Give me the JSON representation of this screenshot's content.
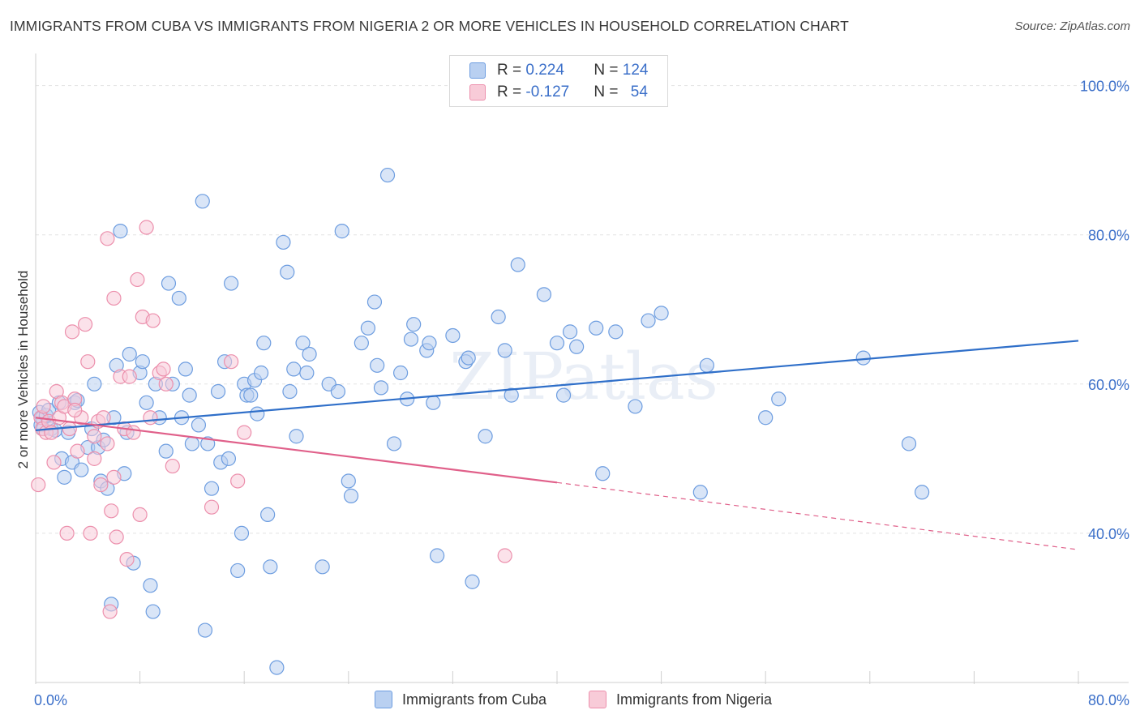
{
  "title": "IMMIGRANTS FROM CUBA VS IMMIGRANTS FROM NIGERIA 2 OR MORE VEHICLES IN HOUSEHOLD CORRELATION CHART",
  "source": "Source: ZipAtlas.com",
  "watermark": "ZIPatlas",
  "legend": {
    "cuba": {
      "r_label": "R = ",
      "r_value": "0.224",
      "n_label": "N = ",
      "n_value": "124"
    },
    "nigeria": {
      "r_label": "R = ",
      "r_value": "-0.127",
      "n_label": "N = ",
      "n_value": "54"
    }
  },
  "colors": {
    "cuba": "#6d9de0",
    "cuba_fill": "#b9d0f1",
    "nigeria": "#ec8fac",
    "nigeria_fill": "#f8cbd8",
    "cuba_line": "#2f6fc9",
    "nigeria_line": "#e0608a",
    "tick_label": "#3b6fc9",
    "grid": "#e3e3e3"
  },
  "chart_data": {
    "type": "scatter",
    "xlabel": "",
    "ylabel": "2 or more Vehicles in Household",
    "x_tick_labels": [
      "0.0%",
      "80.0%"
    ],
    "y_tick_labels": [
      "100.0%",
      "80.0%",
      "60.0%",
      "40.0%"
    ],
    "y_ticks": [
      100,
      80,
      60,
      40
    ],
    "xlim": [
      0,
      80
    ],
    "ylim": [
      20,
      103
    ],
    "grid": "horizontal dashed",
    "series": [
      {
        "name": "Immigrants from Cuba",
        "points": [
          [
            0.3,
            56.2
          ],
          [
            0.4,
            54.5
          ],
          [
            0.5,
            55.5
          ],
          [
            0.6,
            54.0
          ],
          [
            0.8,
            55.8
          ],
          [
            1.0,
            56.5
          ],
          [
            1.2,
            54.0
          ],
          [
            1.5,
            53.8
          ],
          [
            1.8,
            57.5
          ],
          [
            2.0,
            50.0
          ],
          [
            2.2,
            47.5
          ],
          [
            2.5,
            53.5
          ],
          [
            2.8,
            49.5
          ],
          [
            3.0,
            57.5
          ],
          [
            3.2,
            57.8
          ],
          [
            3.5,
            48.5
          ],
          [
            4.0,
            51.5
          ],
          [
            4.3,
            54.0
          ],
          [
            4.5,
            60.0
          ],
          [
            4.8,
            51.5
          ],
          [
            5.0,
            47.0
          ],
          [
            5.2,
            52.5
          ],
          [
            5.5,
            46.0
          ],
          [
            5.8,
            30.5
          ],
          [
            6.0,
            55.5
          ],
          [
            6.2,
            62.5
          ],
          [
            6.5,
            80.5
          ],
          [
            6.8,
            48.0
          ],
          [
            7.0,
            53.5
          ],
          [
            7.2,
            64.0
          ],
          [
            7.5,
            36.0
          ],
          [
            8.0,
            61.5
          ],
          [
            8.2,
            63.0
          ],
          [
            8.5,
            57.5
          ],
          [
            8.8,
            33.0
          ],
          [
            9.0,
            29.5
          ],
          [
            9.2,
            60.0
          ],
          [
            9.5,
            55.5
          ],
          [
            10.0,
            51.0
          ],
          [
            10.2,
            73.5
          ],
          [
            10.5,
            60.0
          ],
          [
            11.0,
            71.5
          ],
          [
            11.2,
            55.5
          ],
          [
            11.5,
            62.0
          ],
          [
            11.8,
            58.5
          ],
          [
            12.0,
            52.0
          ],
          [
            12.5,
            54.5
          ],
          [
            12.8,
            84.5
          ],
          [
            13.0,
            27.0
          ],
          [
            13.2,
            52.0
          ],
          [
            13.5,
            46.0
          ],
          [
            14.0,
            59.0
          ],
          [
            14.2,
            49.5
          ],
          [
            14.5,
            63.0
          ],
          [
            14.8,
            50.0
          ],
          [
            15.0,
            73.5
          ],
          [
            15.5,
            35.0
          ],
          [
            15.8,
            40.0
          ],
          [
            16.0,
            60.0
          ],
          [
            16.2,
            58.5
          ],
          [
            16.5,
            58.5
          ],
          [
            16.8,
            60.5
          ],
          [
            17.0,
            56.0
          ],
          [
            17.3,
            61.5
          ],
          [
            17.5,
            65.5
          ],
          [
            17.8,
            42.5
          ],
          [
            18.0,
            35.5
          ],
          [
            18.5,
            22.0
          ],
          [
            19.0,
            79.0
          ],
          [
            19.3,
            75.0
          ],
          [
            19.5,
            59.0
          ],
          [
            19.8,
            62.0
          ],
          [
            20.0,
            53.0
          ],
          [
            20.5,
            65.5
          ],
          [
            20.8,
            61.5
          ],
          [
            21.0,
            64.0
          ],
          [
            22.0,
            35.5
          ],
          [
            22.5,
            60.0
          ],
          [
            23.2,
            59.0
          ],
          [
            23.5,
            80.5
          ],
          [
            24.0,
            47.0
          ],
          [
            24.2,
            45.0
          ],
          [
            25.0,
            65.5
          ],
          [
            25.5,
            67.5
          ],
          [
            26.0,
            71.0
          ],
          [
            26.2,
            62.5
          ],
          [
            26.5,
            59.5
          ],
          [
            27.0,
            88.0
          ],
          [
            27.5,
            52.0
          ],
          [
            28.0,
            61.5
          ],
          [
            28.5,
            58.0
          ],
          [
            28.8,
            66.0
          ],
          [
            29.0,
            68.0
          ],
          [
            30.0,
            64.5
          ],
          [
            30.2,
            65.5
          ],
          [
            30.5,
            57.5
          ],
          [
            30.8,
            37.0
          ],
          [
            32.0,
            66.5
          ],
          [
            33.0,
            63.0
          ],
          [
            33.2,
            63.5
          ],
          [
            33.5,
            33.5
          ],
          [
            34.5,
            53.0
          ],
          [
            35.5,
            69.0
          ],
          [
            36.0,
            64.5
          ],
          [
            36.5,
            58.5
          ],
          [
            37.0,
            76.0
          ],
          [
            39.0,
            72.0
          ],
          [
            40.0,
            65.5
          ],
          [
            40.5,
            58.5
          ],
          [
            41.0,
            67.0
          ],
          [
            41.5,
            65.0
          ],
          [
            43.0,
            67.5
          ],
          [
            43.5,
            48.0
          ],
          [
            44.5,
            67.0
          ],
          [
            46.0,
            57.0
          ],
          [
            47.0,
            68.5
          ],
          [
            48.0,
            69.5
          ],
          [
            51.0,
            45.5
          ],
          [
            51.5,
            62.5
          ],
          [
            56.0,
            55.5
          ],
          [
            63.5,
            63.5
          ],
          [
            67.0,
            52.0
          ],
          [
            68.0,
            45.5
          ],
          [
            57.0,
            58.0
          ]
        ],
        "trend": {
          "x": [
            0,
            80
          ],
          "y": [
            53.8,
            65.8
          ]
        }
      },
      {
        "name": "Immigrants from Nigeria",
        "points": [
          [
            0.2,
            46.5
          ],
          [
            0.4,
            55.5
          ],
          [
            0.5,
            54.0
          ],
          [
            0.6,
            57.0
          ],
          [
            0.8,
            53.5
          ],
          [
            1.0,
            55.0
          ],
          [
            1.2,
            53.5
          ],
          [
            1.4,
            49.5
          ],
          [
            1.6,
            59.0
          ],
          [
            1.8,
            55.5
          ],
          [
            2.0,
            57.5
          ],
          [
            2.2,
            57.0
          ],
          [
            2.4,
            40.0
          ],
          [
            2.6,
            54.0
          ],
          [
            2.8,
            67.0
          ],
          [
            3.0,
            58.0
          ],
          [
            3.2,
            51.0
          ],
          [
            3.5,
            55.5
          ],
          [
            3.8,
            68.0
          ],
          [
            4.0,
            63.0
          ],
          [
            4.2,
            40.0
          ],
          [
            4.5,
            53.0
          ],
          [
            4.8,
            55.0
          ],
          [
            5.0,
            46.5
          ],
          [
            5.2,
            55.5
          ],
          [
            5.5,
            79.5
          ],
          [
            5.7,
            29.5
          ],
          [
            5.8,
            43.0
          ],
          [
            6.0,
            71.5
          ],
          [
            6.2,
            39.5
          ],
          [
            6.5,
            61.0
          ],
          [
            6.8,
            54.0
          ],
          [
            7.0,
            36.5
          ],
          [
            7.2,
            61.0
          ],
          [
            7.5,
            53.5
          ],
          [
            7.8,
            74.0
          ],
          [
            8.0,
            42.5
          ],
          [
            8.2,
            69.0
          ],
          [
            8.5,
            81.0
          ],
          [
            8.8,
            55.5
          ],
          [
            9.0,
            68.5
          ],
          [
            9.5,
            61.5
          ],
          [
            9.8,
            62.0
          ],
          [
            10.0,
            60.0
          ],
          [
            10.5,
            49.0
          ],
          [
            13.5,
            43.5
          ],
          [
            15.0,
            63.0
          ],
          [
            15.5,
            47.0
          ],
          [
            16.0,
            53.5
          ],
          [
            36.0,
            37.0
          ],
          [
            3.0,
            56.5
          ],
          [
            4.5,
            50.0
          ],
          [
            6.0,
            47.5
          ],
          [
            5.5,
            52.0
          ]
        ],
        "trend_solid": {
          "x": [
            0,
            40
          ],
          "y": [
            55.5,
            46.8
          ]
        },
        "trend_dashed": {
          "x": [
            40,
            80
          ],
          "y": [
            46.8,
            37.8
          ]
        }
      }
    ]
  },
  "bottom_legend": {
    "cuba_label": "Immigrants from Cuba",
    "nigeria_label": "Immigrants from Nigeria"
  }
}
